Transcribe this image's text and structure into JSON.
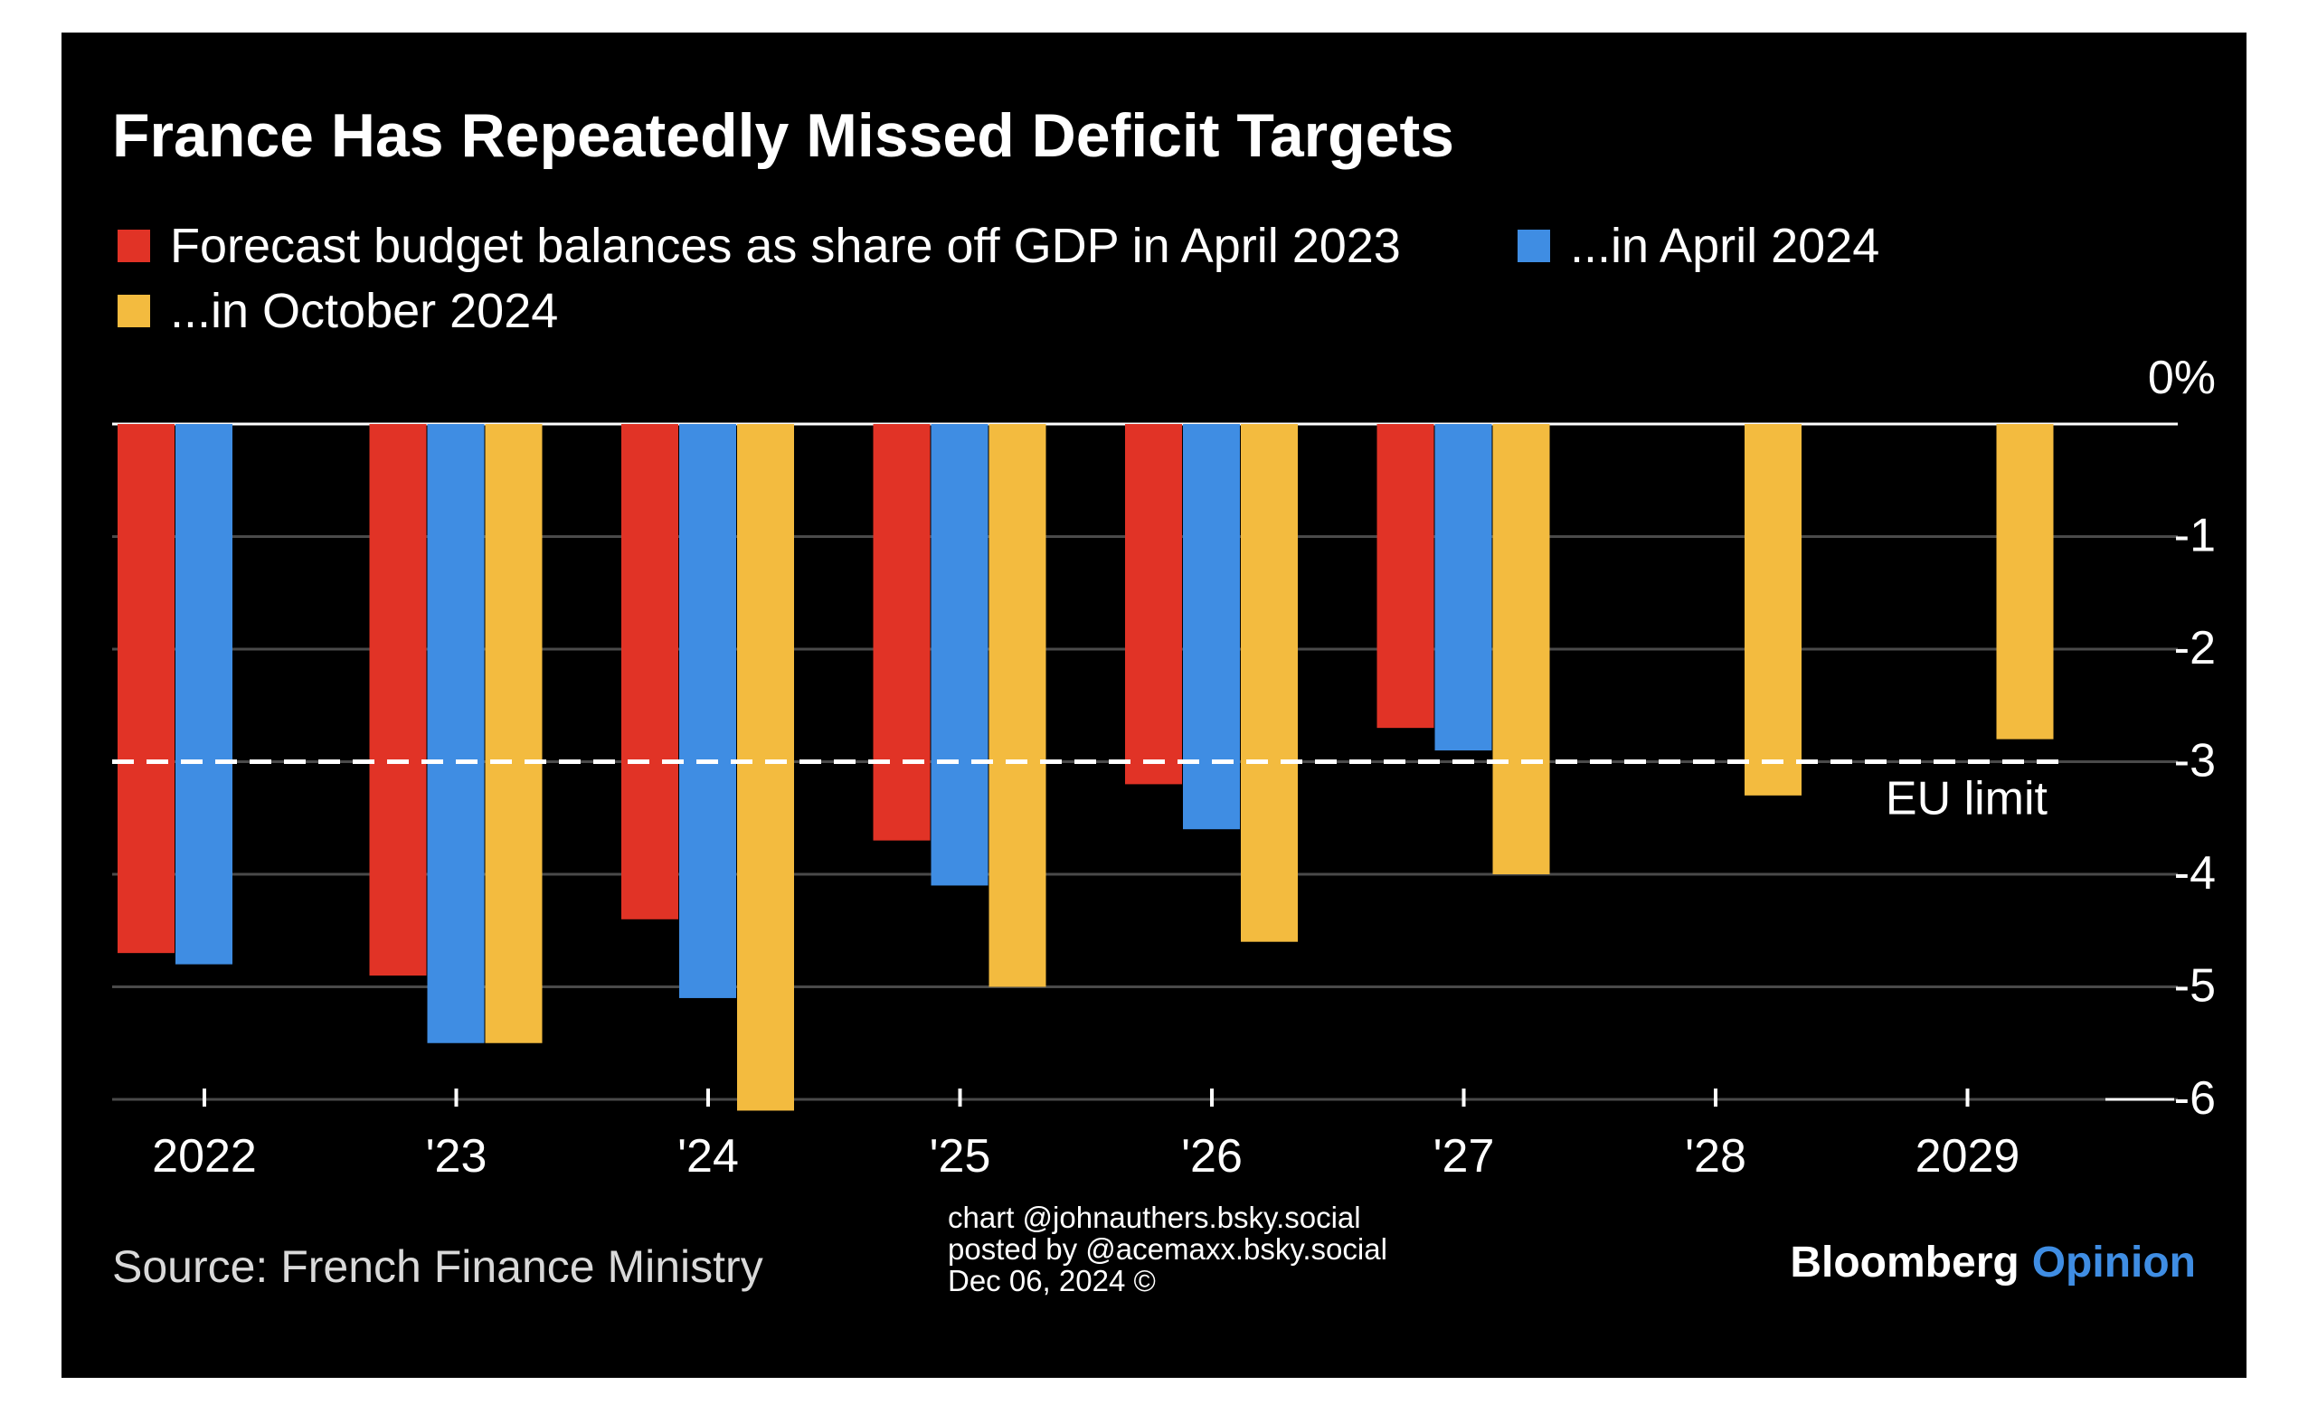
{
  "chart_data": {
    "type": "bar",
    "title": "France Has Repeatedly Missed Deficit Targets",
    "categories": [
      "2022",
      "'23",
      "'24",
      "'25",
      "'26",
      "'27",
      "'28",
      "2029"
    ],
    "series": [
      {
        "name": "Forecast budget balances as share off GDP in April 2023",
        "color": "#e13326",
        "values": [
          -4.7,
          -4.9,
          -4.4,
          -3.7,
          -3.2,
          -2.7,
          null,
          null
        ]
      },
      {
        "name": "...in April 2024",
        "color": "#3f8de3",
        "values": [
          -4.8,
          -5.5,
          -5.1,
          -4.1,
          -3.6,
          -2.9,
          null,
          null
        ]
      },
      {
        "name": "...in October 2024",
        "color": "#f3bb3f",
        "values": [
          null,
          -5.5,
          -6.1,
          -5.0,
          -4.6,
          -4.0,
          -3.3,
          -2.8
        ]
      }
    ],
    "y_ticks": [
      {
        "value": 0,
        "label": "0%"
      },
      {
        "value": -1,
        "label": "-1"
      },
      {
        "value": -2,
        "label": "-2"
      },
      {
        "value": -3,
        "label": "-3"
      },
      {
        "value": -4,
        "label": "-4"
      },
      {
        "value": -5,
        "label": "-5"
      },
      {
        "value": -6,
        "label": "-6"
      }
    ],
    "ylim": [
      -6.2,
      0
    ],
    "reference_line": {
      "value": -3,
      "label": "EU limit",
      "style": "dashed",
      "color": "#ffffff"
    },
    "grid": true,
    "legend_position": "top-left",
    "source": "Source: French Finance Ministry"
  },
  "branding": {
    "bloomberg": "Bloomberg",
    "opinion": "Opinion",
    "bloomberg_color": "#ffffff",
    "opinion_color": "#3f8de3"
  },
  "credit_lines": [
    "chart @johnauthers.bsky.social",
    "posted by @acemaxx.bsky.social",
    "Dec 06, 2024 ©"
  ],
  "colors": {
    "background": "#000000",
    "gridline": "#4a4a4a",
    "zero_line": "#ffffff"
  }
}
